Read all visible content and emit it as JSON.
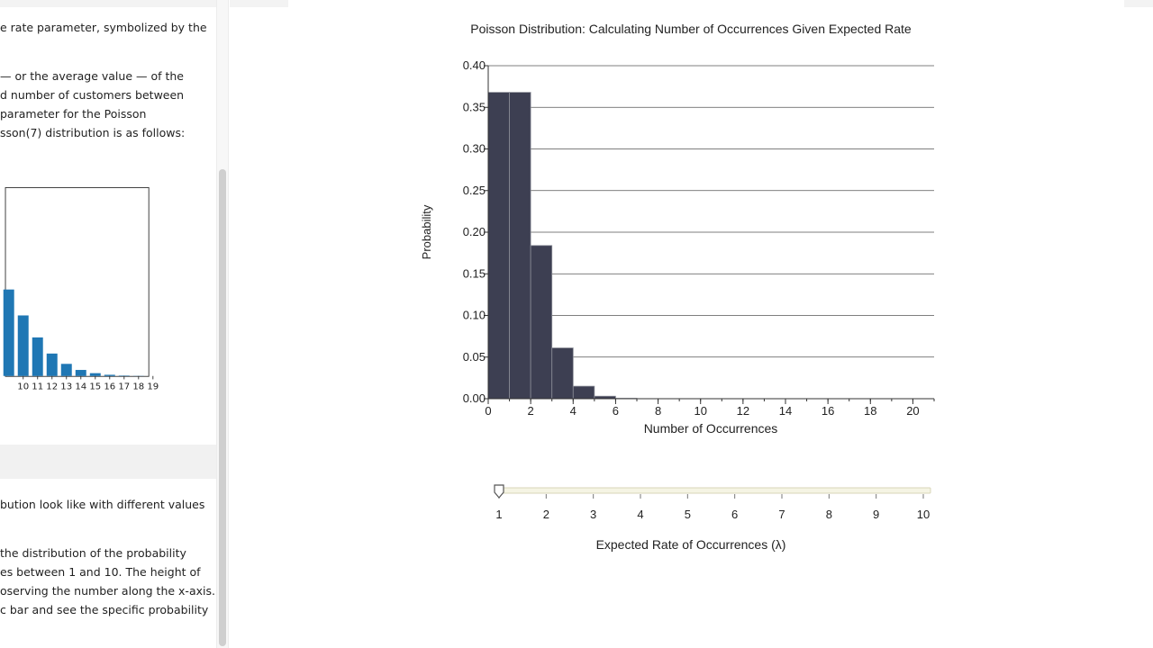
{
  "left_panel": {
    "paragraph1": "e rate parameter, symbolized by the",
    "paragraph2": [
      "— or the average value — of the",
      "d number of customers between",
      " parameter for the Poisson",
      "sson(7) distribution is as follows:"
    ],
    "mini_chart": {
      "type": "bar",
      "color": "#1f77b4",
      "tick_labels": [
        "10",
        "11",
        "12",
        "13",
        "14",
        "15",
        "16",
        "17",
        "18",
        "19"
      ],
      "visible_bars": [
        {
          "x": 9,
          "value": 0.1014
        },
        {
          "x": 10,
          "value": 0.071
        },
        {
          "x": 11,
          "value": 0.0452
        },
        {
          "x": 12,
          "value": 0.0263
        },
        {
          "x": 13,
          "value": 0.0142
        },
        {
          "x": 14,
          "value": 0.0071
        },
        {
          "x": 15,
          "value": 0.0033
        },
        {
          "x": 16,
          "value": 0.0014
        },
        {
          "x": 17,
          "value": 0.0005
        },
        {
          "x": 18,
          "value": 0.0002
        }
      ]
    },
    "paragraph3": [
      "bution look like with different values"
    ],
    "paragraph4": [
      "the distribution of the probability",
      "es between 1 and 10. The height of",
      "oserving the number along the x-axis.",
      "c bar and see the specific probability"
    ]
  },
  "chart_data": {
    "type": "bar",
    "title": "Poisson Distribution: Calculating Number of Occurrences Given Expected Rate",
    "xlabel": "Number of Occurrences",
    "ylabel": "Probability",
    "x": [
      0,
      1,
      2,
      3,
      4,
      5,
      6,
      7,
      8,
      9,
      10,
      11,
      12,
      13,
      14,
      15,
      16,
      17,
      18,
      19,
      20
    ],
    "values": [
      0.368,
      0.368,
      0.184,
      0.061,
      0.015,
      0.003,
      0.0005,
      0.0001,
      0,
      0,
      0,
      0,
      0,
      0,
      0,
      0,
      0,
      0,
      0,
      0,
      0
    ],
    "xlim": [
      0,
      21
    ],
    "ylim": [
      0,
      0.4
    ],
    "x_ticks": [
      0,
      2,
      4,
      6,
      8,
      10,
      12,
      14,
      16,
      18,
      20
    ],
    "y_ticks": [
      "0.00",
      "0.05",
      "0.10",
      "0.15",
      "0.20",
      "0.25",
      "0.30",
      "0.35",
      "0.40"
    ],
    "grid": true,
    "bar_color": "#3d3f52"
  },
  "slider": {
    "label": "Expected Rate of Occurrences (λ)",
    "ticks": [
      "1",
      "2",
      "3",
      "4",
      "5",
      "6",
      "7",
      "8",
      "9",
      "10"
    ],
    "value": 1,
    "min": 1,
    "max": 10
  }
}
